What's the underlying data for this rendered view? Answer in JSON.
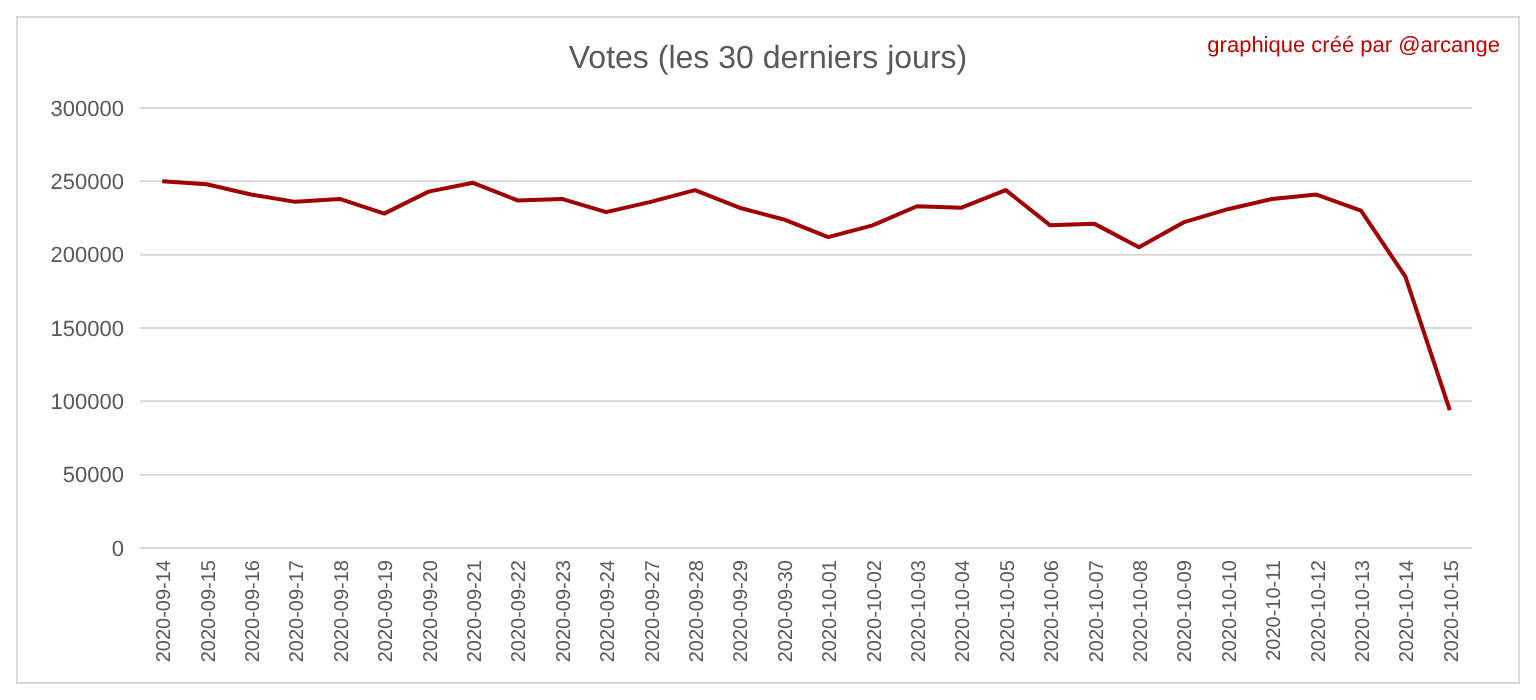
{
  "chart_data": {
    "type": "line",
    "title": "Votes (les 30 derniers jours)",
    "annotations": [
      "graphique créé par @arcange"
    ],
    "categories": [
      "2020-09-14",
      "2020-09-15",
      "2020-09-16",
      "2020-09-17",
      "2020-09-18",
      "2020-09-19",
      "2020-09-20",
      "2020-09-21",
      "2020-09-22",
      "2020-09-23",
      "2020-09-24",
      "2020-09-27",
      "2020-09-28",
      "2020-09-29",
      "2020-09-30",
      "2020-10-01",
      "2020-10-02",
      "2020-10-03",
      "2020-10-04",
      "2020-10-05",
      "2020-10-06",
      "2020-10-07",
      "2020-10-08",
      "2020-10-09",
      "2020-10-10",
      "2020-10-11",
      "2020-10-12",
      "2020-10-13",
      "2020-10-14",
      "2020-10-15"
    ],
    "series": [
      {
        "color": "#a00000",
        "values": [
          250000,
          248000,
          241000,
          236000,
          238000,
          228000,
          243000,
          249000,
          237000,
          238000,
          229000,
          236000,
          244000,
          232000,
          224000,
          212000,
          220000,
          233000,
          232000,
          244000,
          220000,
          221000,
          205000,
          222000,
          231000,
          238000,
          241000,
          230000,
          185000,
          94000
        ]
      }
    ],
    "ylim": [
      0,
      300000
    ],
    "yticks": [
      0,
      50000,
      100000,
      150000,
      200000,
      250000,
      300000
    ],
    "grid": "y",
    "marker": "none",
    "line_style": "solid"
  }
}
